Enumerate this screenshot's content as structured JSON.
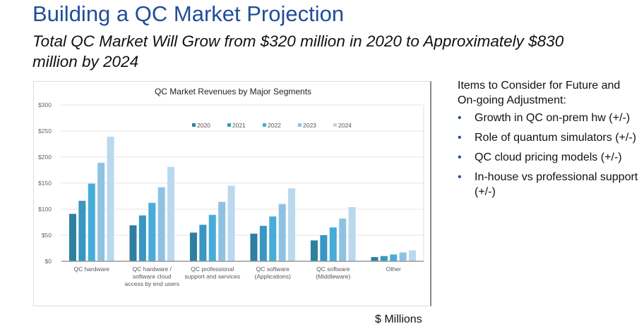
{
  "slide": {
    "title": "Building a QC Market Projection",
    "subtitle": "Total QC Market Will Grow from $320 million in 2020 to Approximately $830 million by 2024",
    "units": "$ Millions"
  },
  "sidebar": {
    "heading": "Items to Consider for Future and On-going Adjustment:",
    "items": [
      "Growth in QC on-prem hw (+/-)",
      "Role of quantum simulators (+/-)",
      "QC cloud pricing models (+/-)",
      "In-house vs professional support (+/-)"
    ]
  },
  "chart_data": {
    "type": "bar",
    "title": "QC Market Revenues by Major Segments",
    "categories": [
      [
        "QC hardware"
      ],
      [
        "QC hardware /",
        "software cloud",
        "access by end users"
      ],
      [
        "QC professional",
        "support and services"
      ],
      [
        "QC software",
        "(Applications)"
      ],
      [
        "QC software",
        "(Middleware)"
      ],
      [
        "Other"
      ]
    ],
    "series": [
      {
        "name": "2020",
        "color": "#2e7fa0",
        "values": [
          91,
          69,
          55,
          53,
          40,
          8
        ]
      },
      {
        "name": "2021",
        "color": "#3a96c2",
        "values": [
          116,
          88,
          70,
          68,
          50,
          10
        ]
      },
      {
        "name": "2022",
        "color": "#47acd8",
        "values": [
          149,
          112,
          89,
          86,
          65,
          13
        ]
      },
      {
        "name": "2023",
        "color": "#8fc2e2",
        "values": [
          189,
          142,
          114,
          110,
          82,
          17
        ]
      },
      {
        "name": "2024",
        "color": "#bad8ee",
        "values": [
          239,
          181,
          145,
          140,
          104,
          21
        ]
      }
    ],
    "yticks": [
      "$0",
      "$50",
      "$100",
      "$150",
      "$200",
      "$250",
      "$300"
    ],
    "ylim": [
      0,
      300
    ],
    "grid": true,
    "legend": "top-center"
  }
}
